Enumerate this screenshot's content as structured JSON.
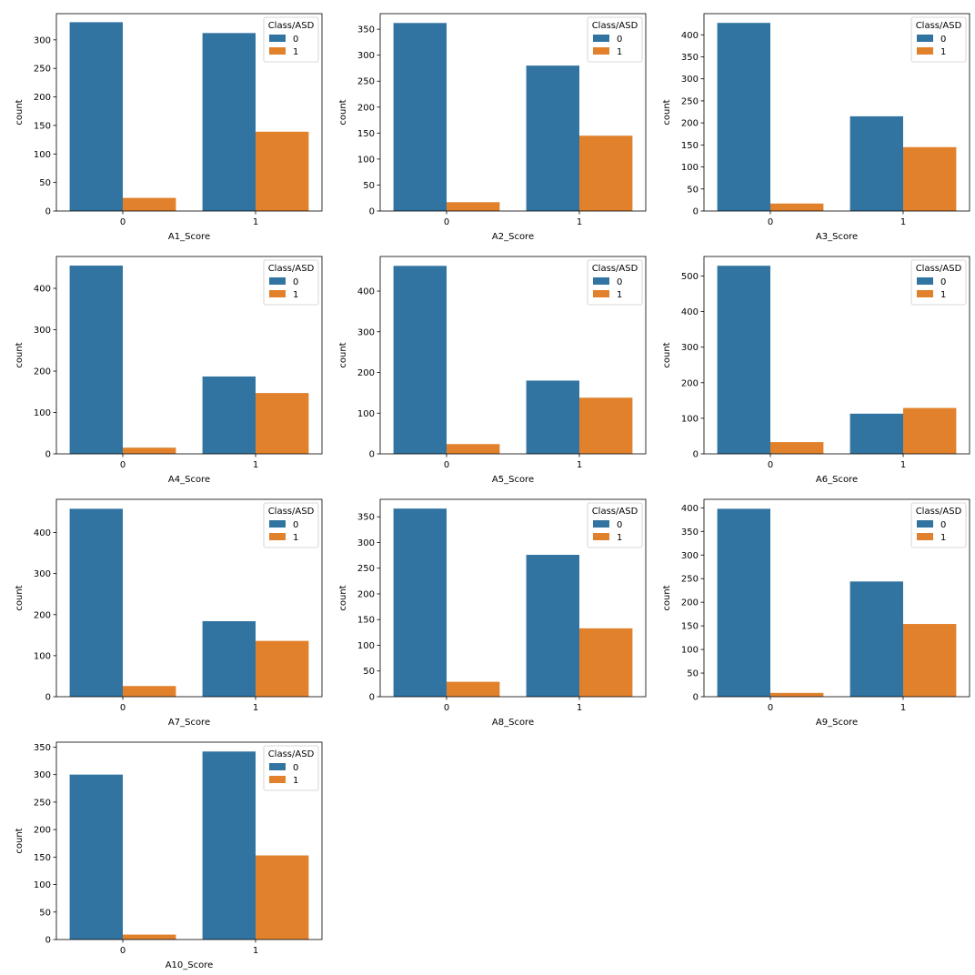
{
  "figure": {
    "legend_title": "Class/ASD",
    "hue_levels": [
      "0",
      "1"
    ],
    "colors": {
      "0": "#3274a1",
      "1": "#e1812c"
    },
    "ylabel": "count"
  },
  "chart_data": [
    {
      "type": "bar",
      "xlabel": "A1_Score",
      "ylabel": "count",
      "categories": [
        "0",
        "1"
      ],
      "series": [
        {
          "name": "0",
          "values": [
            331,
            312
          ]
        },
        {
          "name": "1",
          "values": [
            23,
            139
          ]
        }
      ],
      "ylim": [
        0,
        346
      ],
      "yticks": [
        0,
        50,
        100,
        150,
        200,
        250,
        300
      ],
      "legend": "top-right"
    },
    {
      "type": "bar",
      "xlabel": "A2_Score",
      "ylabel": "count",
      "categories": [
        "0",
        "1"
      ],
      "series": [
        {
          "name": "0",
          "values": [
            362,
            280
          ]
        },
        {
          "name": "1",
          "values": [
            17,
            145
          ]
        }
      ],
      "ylim": [
        0,
        380
      ],
      "yticks": [
        0,
        50,
        100,
        150,
        200,
        250,
        300,
        350
      ],
      "legend": "top-right"
    },
    {
      "type": "bar",
      "xlabel": "A3_Score",
      "ylabel": "count",
      "categories": [
        "0",
        "1"
      ],
      "series": [
        {
          "name": "0",
          "values": [
            427,
            215
          ]
        },
        {
          "name": "1",
          "values": [
            17,
            145
          ]
        }
      ],
      "ylim": [
        0,
        448
      ],
      "yticks": [
        0,
        50,
        100,
        150,
        200,
        250,
        300,
        350,
        400
      ],
      "legend": "top-right"
    },
    {
      "type": "bar",
      "xlabel": "A4_Score",
      "ylabel": "count",
      "categories": [
        "0",
        "1"
      ],
      "series": [
        {
          "name": "0",
          "values": [
            455,
            187
          ]
        },
        {
          "name": "1",
          "values": [
            15,
            147
          ]
        }
      ],
      "ylim": [
        0,
        477
      ],
      "yticks": [
        0,
        100,
        200,
        300,
        400
      ],
      "legend": "top-right"
    },
    {
      "type": "bar",
      "xlabel": "A5_Score",
      "ylabel": "count",
      "categories": [
        "0",
        "1"
      ],
      "series": [
        {
          "name": "0",
          "values": [
            462,
            180
          ]
        },
        {
          "name": "1",
          "values": [
            24,
            138
          ]
        }
      ],
      "ylim": [
        0,
        485
      ],
      "yticks": [
        0,
        100,
        200,
        300,
        400
      ],
      "legend": "top-right"
    },
    {
      "type": "bar",
      "xlabel": "A6_Score",
      "ylabel": "count",
      "categories": [
        "0",
        "1"
      ],
      "series": [
        {
          "name": "0",
          "values": [
            529,
            113
          ]
        },
        {
          "name": "1",
          "values": [
            33,
            129
          ]
        }
      ],
      "ylim": [
        0,
        555
      ],
      "yticks": [
        0,
        100,
        200,
        300,
        400,
        500
      ],
      "legend": "top-right"
    },
    {
      "type": "bar",
      "xlabel": "A7_Score",
      "ylabel": "count",
      "categories": [
        "0",
        "1"
      ],
      "series": [
        {
          "name": "0",
          "values": [
            458,
            184
          ]
        },
        {
          "name": "1",
          "values": [
            26,
            136
          ]
        }
      ],
      "ylim": [
        0,
        481
      ],
      "yticks": [
        0,
        100,
        200,
        300,
        400
      ],
      "legend": "top-right"
    },
    {
      "type": "bar",
      "xlabel": "A8_Score",
      "ylabel": "count",
      "categories": [
        "0",
        "1"
      ],
      "series": [
        {
          "name": "0",
          "values": [
            366,
            276
          ]
        },
        {
          "name": "1",
          "values": [
            29,
            133
          ]
        }
      ],
      "ylim": [
        0,
        384
      ],
      "yticks": [
        0,
        50,
        100,
        150,
        200,
        250,
        300,
        350
      ],
      "legend": "top-right"
    },
    {
      "type": "bar",
      "xlabel": "A9_Score",
      "ylabel": "count",
      "categories": [
        "0",
        "1"
      ],
      "series": [
        {
          "name": "0",
          "values": [
            398,
            244
          ]
        },
        {
          "name": "1",
          "values": [
            8,
            154
          ]
        }
      ],
      "ylim": [
        0,
        418
      ],
      "yticks": [
        0,
        50,
        100,
        150,
        200,
        250,
        300,
        350,
        400
      ],
      "legend": "top-right"
    },
    {
      "type": "bar",
      "xlabel": "A10_Score",
      "ylabel": "count",
      "categories": [
        "0",
        "1"
      ],
      "series": [
        {
          "name": "0",
          "values": [
            300,
            342
          ]
        },
        {
          "name": "1",
          "values": [
            9,
            153
          ]
        }
      ],
      "ylim": [
        0,
        359
      ],
      "yticks": [
        0,
        50,
        100,
        150,
        200,
        250,
        300,
        350
      ],
      "legend": "top-right"
    }
  ]
}
